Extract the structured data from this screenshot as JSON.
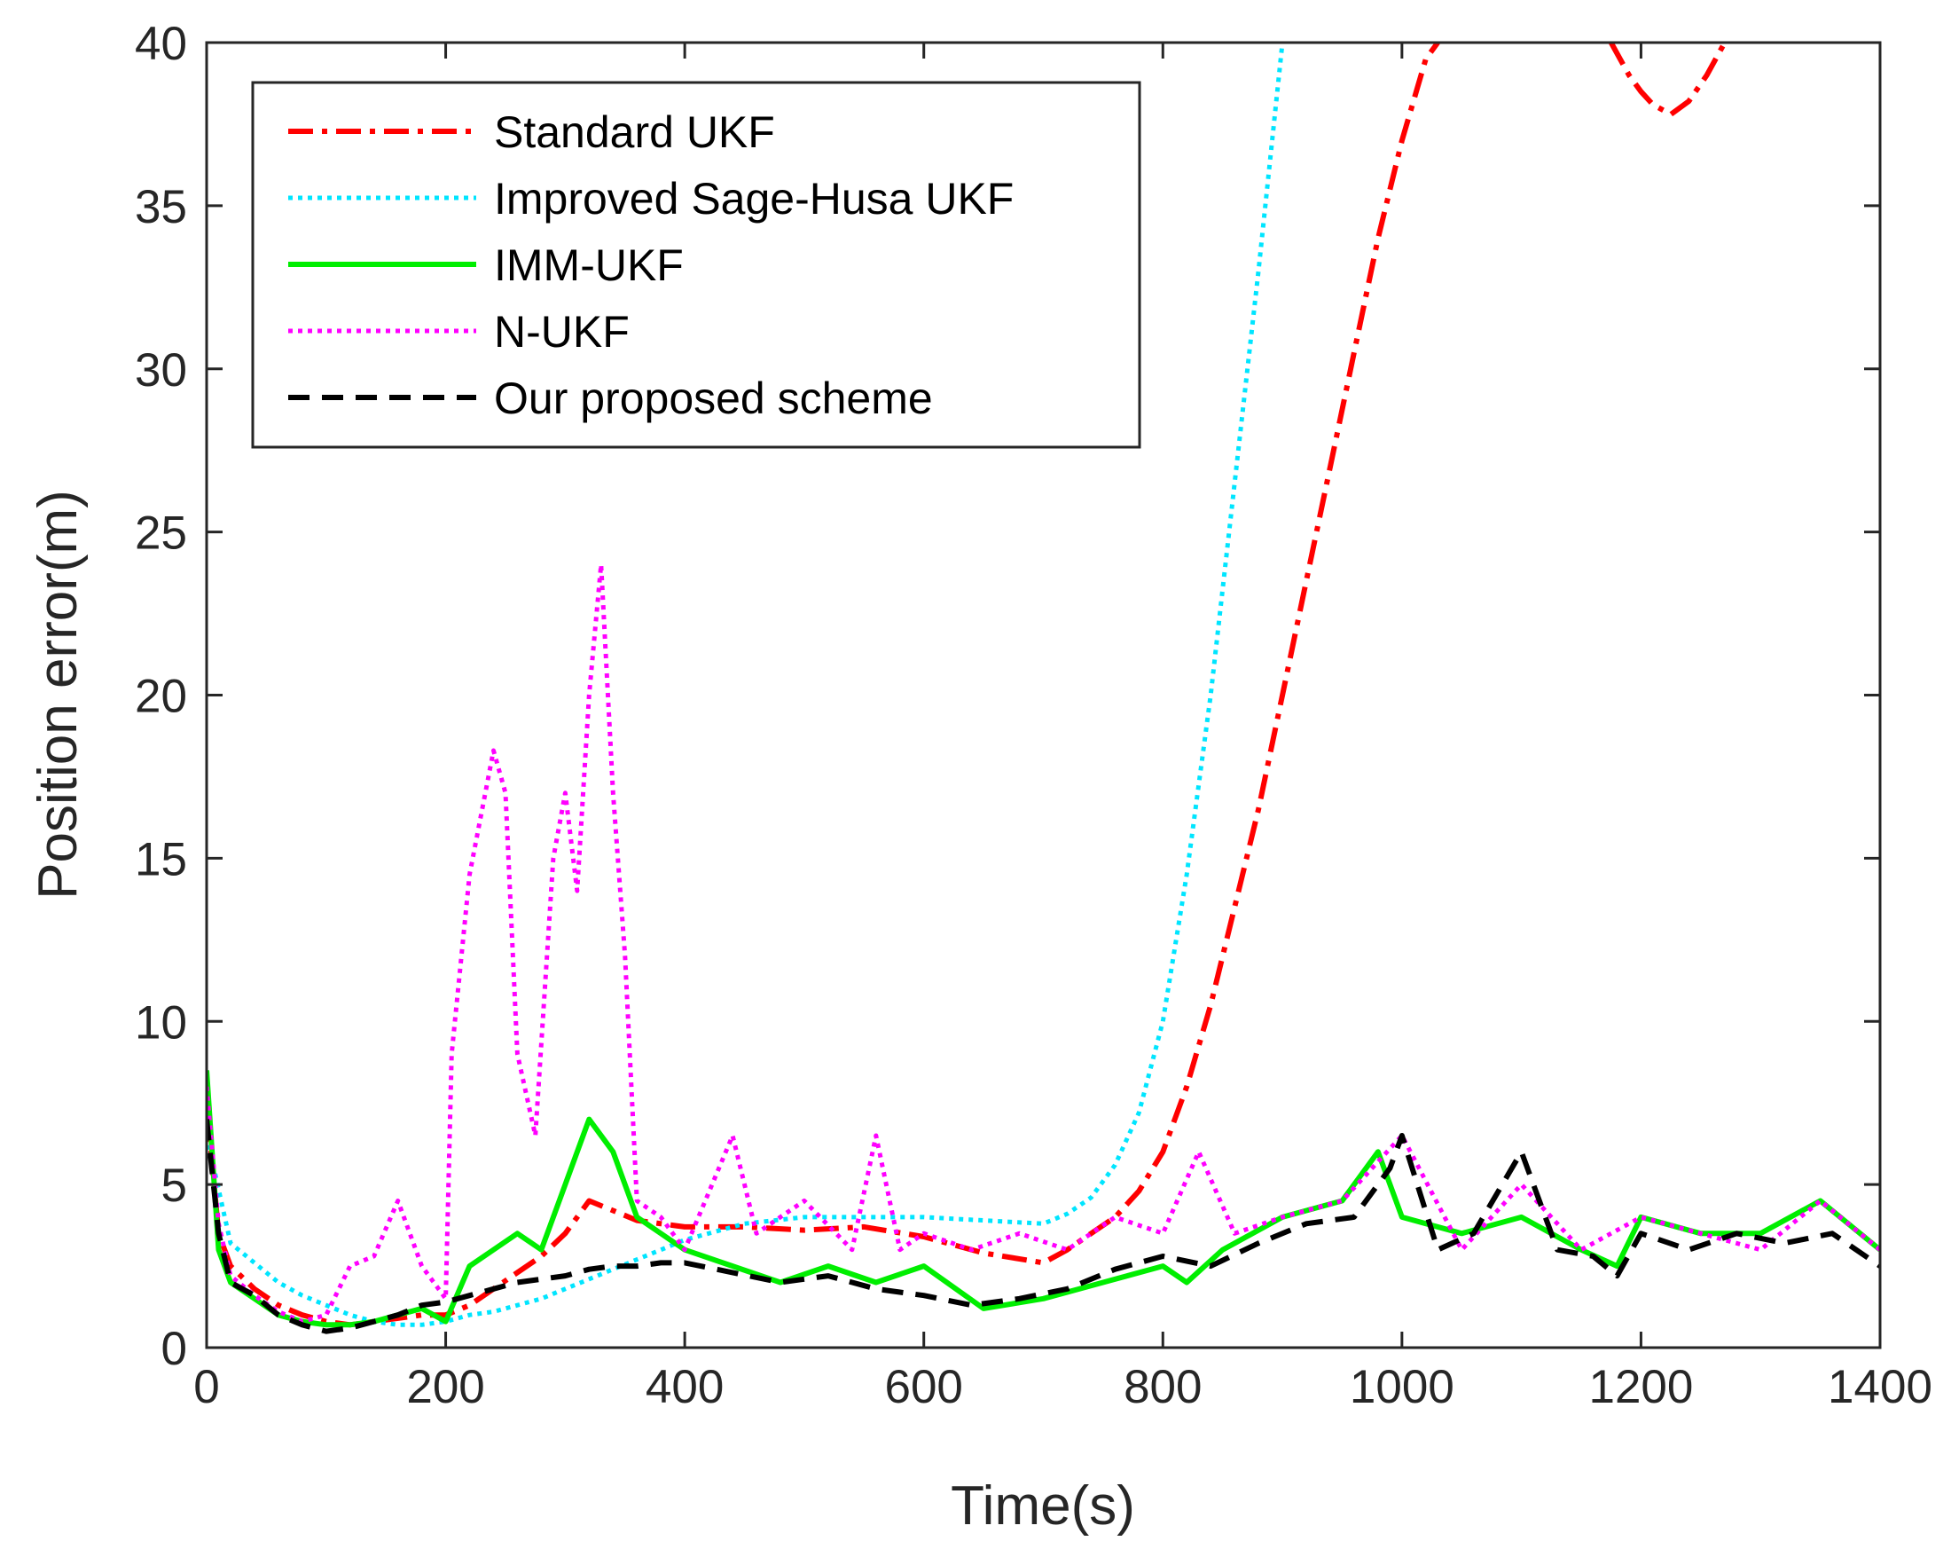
{
  "chart_data": {
    "type": "line",
    "title": "",
    "xlabel": "Time(s)",
    "ylabel": "Position error(m)",
    "xlim": [
      0,
      1400
    ],
    "ylim": [
      0,
      40
    ],
    "xticks": [
      0,
      200,
      400,
      600,
      800,
      1000,
      1200,
      1400
    ],
    "yticks": [
      0,
      5,
      10,
      15,
      20,
      25,
      30,
      35,
      40
    ],
    "xtick_labels": [
      "0",
      "200",
      "400",
      "600",
      "800",
      "1000",
      "1200",
      "1400"
    ],
    "ytick_labels": [
      "0",
      "5",
      "10",
      "15",
      "20",
      "25",
      "30",
      "35",
      "40"
    ],
    "grid": false,
    "legend_position": "top-left",
    "series": [
      {
        "name": "Standard UKF",
        "color": "#ff0000",
        "dash": "dash-dot",
        "x": [
          0,
          10,
          20,
          40,
          60,
          80,
          100,
          120,
          140,
          160,
          180,
          200,
          220,
          240,
          260,
          280,
          300,
          320,
          340,
          360,
          380,
          400,
          450,
          500,
          550,
          600,
          650,
          700,
          720,
          740,
          760,
          780,
          800,
          820,
          840,
          860,
          880,
          900,
          920,
          940,
          960,
          980,
          1000,
          1020,
          1030
        ],
        "y": [
          7.5,
          3.5,
          2.5,
          1.8,
          1.3,
          1.0,
          0.8,
          0.7,
          0.8,
          0.9,
          1.0,
          1.0,
          1.3,
          1.8,
          2.3,
          2.8,
          3.5,
          4.5,
          4.2,
          3.9,
          3.8,
          3.7,
          3.7,
          3.6,
          3.7,
          3.4,
          2.9,
          2.6,
          3.0,
          3.5,
          4.0,
          4.8,
          6.0,
          8.0,
          10.5,
          13.5,
          16.5,
          20.0,
          23.5,
          27.0,
          30.5,
          34.0,
          37.0,
          39.5,
          40.0
        ]
      },
      {
        "name": "Standard UKF",
        "color": "#ff0000",
        "dash": "dash-dot",
        "x": [
          1175,
          1190,
          1200,
          1210,
          1225,
          1240,
          1255,
          1270
        ],
        "y": [
          40.0,
          39.0,
          38.5,
          38.1,
          37.8,
          38.2,
          39.0,
          40.0
        ]
      },
      {
        "name": "Improved Sage-Husa UKF",
        "color": "#00e5ff",
        "dash": "dotted",
        "x": [
          0,
          20,
          40,
          60,
          80,
          100,
          120,
          140,
          160,
          180,
          200,
          220,
          240,
          260,
          280,
          300,
          320,
          340,
          360,
          380,
          400,
          450,
          500,
          550,
          600,
          650,
          700,
          720,
          740,
          760,
          780,
          800,
          820,
          840,
          860,
          880,
          900
        ],
        "y": [
          6.5,
          3.2,
          2.6,
          2.0,
          1.6,
          1.3,
          1.0,
          0.8,
          0.7,
          0.7,
          0.8,
          1.0,
          1.1,
          1.3,
          1.5,
          1.8,
          2.1,
          2.4,
          2.7,
          3.0,
          3.3,
          3.8,
          4.0,
          4.0,
          4.0,
          3.9,
          3.8,
          4.1,
          4.6,
          5.6,
          7.2,
          10.0,
          14.5,
          20.0,
          26.5,
          33.0,
          40.0
        ]
      },
      {
        "name": "IMM-UKF",
        "color": "#00ee00",
        "dash": "solid",
        "x": [
          0,
          10,
          20,
          40,
          60,
          80,
          100,
          120,
          140,
          160,
          180,
          200,
          220,
          240,
          260,
          280,
          300,
          320,
          340,
          360,
          380,
          400,
          440,
          480,
          520,
          560,
          600,
          650,
          700,
          750,
          800,
          820,
          850,
          900,
          950,
          980,
          1000,
          1050,
          1100,
          1150,
          1180,
          1200,
          1250,
          1300,
          1350,
          1400
        ],
        "y": [
          8.5,
          3.0,
          2.0,
          1.5,
          1.0,
          0.8,
          0.7,
          0.7,
          0.8,
          1.0,
          1.2,
          0.8,
          2.5,
          3.0,
          3.5,
          3.0,
          5.0,
          7.0,
          6.0,
          4.0,
          3.5,
          3.0,
          2.5,
          2.0,
          2.5,
          2.0,
          2.5,
          1.2,
          1.5,
          2.0,
          2.5,
          2.0,
          3.0,
          4.0,
          4.5,
          6.0,
          4.0,
          3.5,
          4.0,
          3.0,
          2.5,
          4.0,
          3.5,
          3.5,
          4.5,
          3.0
        ]
      },
      {
        "name": "N-UKF",
        "color": "#ff00ff",
        "dash": "dotted",
        "x": [
          0,
          10,
          20,
          40,
          60,
          80,
          100,
          120,
          140,
          160,
          180,
          200,
          205,
          220,
          240,
          250,
          260,
          275,
          290,
          300,
          310,
          320,
          330,
          340,
          350,
          360,
          380,
          400,
          440,
          460,
          500,
          540,
          560,
          580,
          600,
          640,
          680,
          720,
          760,
          800,
          830,
          860,
          900,
          950,
          1000,
          1050,
          1100,
          1150,
          1200,
          1250,
          1300,
          1350,
          1400
        ],
        "y": [
          8.0,
          3.8,
          2.2,
          1.6,
          1.1,
          0.8,
          1.0,
          2.5,
          2.8,
          4.5,
          2.5,
          1.5,
          9.0,
          14.5,
          18.3,
          17.0,
          9.0,
          6.5,
          15.0,
          17.0,
          14.0,
          20.0,
          24.0,
          17.0,
          12.0,
          4.5,
          4.0,
          3.0,
          6.5,
          3.5,
          4.5,
          3.0,
          6.5,
          3.0,
          3.5,
          3.0,
          3.5,
          3.0,
          4.0,
          3.5,
          6.0,
          3.5,
          4.0,
          4.5,
          6.5,
          3.0,
          5.0,
          3.0,
          4.0,
          3.5,
          3.0,
          4.5,
          3.0
        ]
      },
      {
        "name": "Our proposed scheme",
        "color": "#000000",
        "dash": "dashed",
        "x": [
          0,
          10,
          20,
          40,
          60,
          80,
          100,
          120,
          140,
          160,
          180,
          200,
          220,
          240,
          260,
          280,
          300,
          320,
          340,
          360,
          380,
          400,
          440,
          480,
          520,
          560,
          600,
          640,
          680,
          720,
          760,
          800,
          840,
          880,
          920,
          960,
          990,
          1000,
          1030,
          1060,
          1100,
          1130,
          1160,
          1180,
          1200,
          1240,
          1280,
          1320,
          1360,
          1400
        ],
        "y": [
          7.0,
          3.5,
          2.0,
          1.6,
          1.0,
          0.7,
          0.5,
          0.6,
          0.8,
          1.0,
          1.3,
          1.4,
          1.6,
          1.8,
          2.0,
          2.1,
          2.2,
          2.4,
          2.5,
          2.5,
          2.6,
          2.6,
          2.3,
          2.0,
          2.2,
          1.8,
          1.6,
          1.3,
          1.5,
          1.8,
          2.4,
          2.8,
          2.5,
          3.2,
          3.8,
          4.0,
          5.5,
          6.5,
          3.0,
          3.5,
          6.0,
          3.0,
          2.8,
          2.2,
          3.5,
          3.0,
          3.5,
          3.2,
          3.5,
          2.5
        ]
      }
    ]
  },
  "legend": {
    "items": [
      {
        "label": "Standard UKF",
        "color": "#ff0000",
        "dash": "dash-dot"
      },
      {
        "label": "Improved Sage-Husa UKF",
        "color": "#00e5ff",
        "dash": "dotted"
      },
      {
        "label": "IMM-UKF",
        "color": "#00ee00",
        "dash": "solid"
      },
      {
        "label": "N-UKF",
        "color": "#ff00ff",
        "dash": "dotted"
      },
      {
        "label": "Our proposed scheme",
        "color": "#000000",
        "dash": "dashed"
      }
    ]
  }
}
